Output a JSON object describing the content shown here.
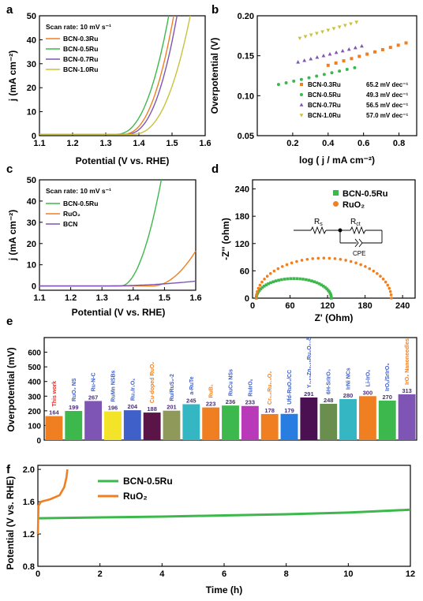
{
  "panel_labels": [
    "a",
    "b",
    "c",
    "d",
    "e",
    "f"
  ],
  "colors": {
    "green": "#3db84c",
    "orange": "#f07f22",
    "purple": "#7e55b4",
    "olive": "#c9c23a",
    "red": "#e8302a",
    "blue": "#3f60c8"
  },
  "chart_data": [
    {
      "panel": "a",
      "type": "line",
      "xlabel": "Potential (V vs. RHE)",
      "ylabel": "j (mA cm⁻²)",
      "xlim": [
        1.1,
        1.6
      ],
      "ylim": [
        0,
        50
      ],
      "xticks": [
        "1.1",
        "1.2",
        "1.3",
        "1.4",
        "1.5",
        "1.6"
      ],
      "yticks": [
        "0",
        "10",
        "20",
        "30",
        "40",
        "50"
      ],
      "annotation": "Scan rate: 10 mV s⁻¹",
      "legend_position": "top-left",
      "series": [
        {
          "name": "BCN-0.3Ru",
          "color": "#f07f22",
          "onset": 1.4,
          "end": 1.505
        },
        {
          "name": "BCN-0.5Ru",
          "color": "#3db84c",
          "onset": 1.38,
          "end": 1.49
        },
        {
          "name": "BCN-0.7Ru",
          "color": "#7e55b4",
          "onset": 1.41,
          "end": 1.515
        },
        {
          "name": "BCN-1.0Ru",
          "color": "#c9c23a",
          "onset": 1.43,
          "end": 1.555
        }
      ]
    },
    {
      "panel": "b",
      "type": "scatter",
      "xlabel": "log ( j / mA cm⁻²)",
      "ylabel": "Overpotential (V)",
      "xlim": [
        0,
        0.9
      ],
      "ylim": [
        0.05,
        0.2
      ],
      "xticks": [
        "0.2",
        "0.4",
        "0.6",
        "0.8"
      ],
      "yticks": [
        "0.05",
        "0.10",
        "0.15",
        "0.20"
      ],
      "legend_position": "bottom-right",
      "series": [
        {
          "name": "BCN-0.3Ru",
          "slope": "65.2 mV dec⁻¹",
          "marker": "square",
          "color": "#f07f22",
          "x": [
            0.4,
            0.84
          ],
          "y": [
            0.138,
            0.166
          ]
        },
        {
          "name": "BCN-0.5Ru",
          "slope": "49.3 mV dec⁻¹",
          "marker": "circle",
          "color": "#3db84c",
          "x": [
            0.12,
            0.55
          ],
          "y": [
            0.114,
            0.135
          ]
        },
        {
          "name": "BCN-0.7Ru",
          "slope": "56.5 mV dec⁻¹",
          "marker": "triangle-up",
          "color": "#7e55b4",
          "x": [
            0.23,
            0.59
          ],
          "y": [
            0.142,
            0.162
          ]
        },
        {
          "name": "BCN-1.0Ru",
          "slope": "57.0 mV dec⁻¹",
          "marker": "triangle-down",
          "color": "#c9c23a",
          "x": [
            0.24,
            0.56
          ],
          "y": [
            0.172,
            0.192
          ]
        }
      ]
    },
    {
      "panel": "c",
      "type": "line",
      "xlabel": "Potential (V vs. RHE)",
      "ylabel": "j (mA cm⁻²)",
      "xlim": [
        1.1,
        1.6
      ],
      "ylim": [
        -2,
        50
      ],
      "xticks": [
        "1.1",
        "1.2",
        "1.3",
        "1.4",
        "1.5",
        "1.6"
      ],
      "yticks": [
        "0",
        "10",
        "20",
        "30",
        "40",
        "50"
      ],
      "annotation": "Scan rate: 10 mV s⁻¹",
      "legend_position": "top-left",
      "series": [
        {
          "name": "BCN-0.5Ru",
          "color": "#3db84c",
          "onset": 1.36,
          "end": 1.49,
          "end_j": 50
        },
        {
          "name": "RuO₂",
          "color": "#f07f22",
          "onset": 1.46,
          "end": 1.6,
          "end_j": 16.5
        },
        {
          "name": "BCN",
          "color": "#7e55b4",
          "onset": 1.3,
          "end": 1.6,
          "end_j": 2.3
        }
      ]
    },
    {
      "panel": "d",
      "type": "scatter",
      "xlabel": "Z' (Ohm)",
      "ylabel": "-Z'' (ohm)",
      "xlim": [
        0,
        260
      ],
      "ylim": [
        0,
        260
      ],
      "xticks": [
        "0",
        "60",
        "120",
        "180",
        "240"
      ],
      "yticks": [
        "0",
        "60",
        "120",
        "180",
        "240"
      ],
      "legend_position": "top-right",
      "circuit_labels": {
        "rs": "R",
        "rs_sub": "s",
        "rct": "R",
        "rct_sub": "ct",
        "cpe": "CPE"
      },
      "series": [
        {
          "name": "BCN-0.5Ru",
          "color": "#3db84c",
          "marker": "square",
          "x_start": 6,
          "x_end": 126,
          "peak": 43
        },
        {
          "name": "RuO₂",
          "color": "#f07f22",
          "marker": "circle",
          "x_start": 6,
          "x_end": 222,
          "peak": 88
        }
      ]
    },
    {
      "panel": "e",
      "type": "bar",
      "ylabel": "Overpotential (mV)",
      "ylim": [
        0,
        700
      ],
      "yticks": [
        "0",
        "100",
        "200",
        "300",
        "400",
        "500",
        "600"
      ],
      "categories": [
        "This work",
        "RuO₂ NS",
        "Ru-N-C",
        "RuMn NSBs",
        "Ru₂Ir₁Oₓ",
        "Cu-doped RuO₂",
        "Ru/RuS₂-2",
        "a-RuTe",
        "RuB₂",
        "RuCu NSs",
        "RuIrOₓ",
        "Cr₀.₆Ru₀.₄O₂",
        "Ufd-RuO₂/CC",
        "Y₁.₈₅Zn₀.₁₅Ru₂O₇₋δ",
        "6H-SrIrO₃",
        "IrNi NCs",
        "Li-IrOₓ",
        "IrOₓ/SrIrO₃",
        "IrO₂ Nanoneedles"
      ],
      "values": [
        164,
        199,
        267,
        196,
        204,
        188,
        201,
        245,
        223,
        236,
        233,
        178,
        179,
        291,
        248,
        280,
        300,
        270,
        313
      ],
      "bar_colors": [
        "#f07f22",
        "#3db84c",
        "#7e55b4",
        "#f3e42a",
        "#3f60c8",
        "#5a1448",
        "#8f9a5a",
        "#35b6c3",
        "#f07f22",
        "#3db84c",
        "#b83ab9",
        "#f07f22",
        "#2a7de0",
        "#4a1052",
        "#6a8e4e",
        "#35b6c3",
        "#f07f22",
        "#3db84c",
        "#7e55b4"
      ],
      "label_colors": [
        "#e8302a",
        "#3f60c8",
        "#3f60c8",
        "#3f60c8",
        "#3f60c8",
        "#f07f22",
        "#3f60c8",
        "#3f60c8",
        "#f07f22",
        "#3f60c8",
        "#3f60c8",
        "#f07f22",
        "#3f60c8",
        "#3f60c8",
        "#3f60c8",
        "#3f60c8",
        "#3f60c8",
        "#3f60c8",
        "#f07f22"
      ]
    },
    {
      "panel": "f",
      "type": "line",
      "xlabel": "Time (h)",
      "ylabel": "Potential (V vs. RHE)",
      "xlim": [
        0,
        12
      ],
      "ylim": [
        0.8,
        2.05
      ],
      "xticks": [
        "0",
        "2",
        "4",
        "6",
        "8",
        "10",
        "12"
      ],
      "yticks": [
        "0.8",
        "1.2",
        "1.6",
        "2.0"
      ],
      "legend_position": "top-center",
      "series": [
        {
          "name": "BCN-0.5Ru",
          "color": "#3db84c",
          "x": [
            0,
            2,
            4,
            6,
            8,
            10,
            12
          ],
          "y": [
            1.395,
            1.405,
            1.415,
            1.43,
            1.445,
            1.465,
            1.5
          ]
        },
        {
          "name": "RuO₂",
          "color": "#f07f22",
          "x": [
            0,
            0.02,
            0.1,
            0.4,
            0.7,
            0.85,
            0.92,
            0.95
          ],
          "y": [
            1.2,
            1.55,
            1.6,
            1.63,
            1.68,
            1.78,
            1.9,
            2.0
          ]
        }
      ]
    }
  ]
}
